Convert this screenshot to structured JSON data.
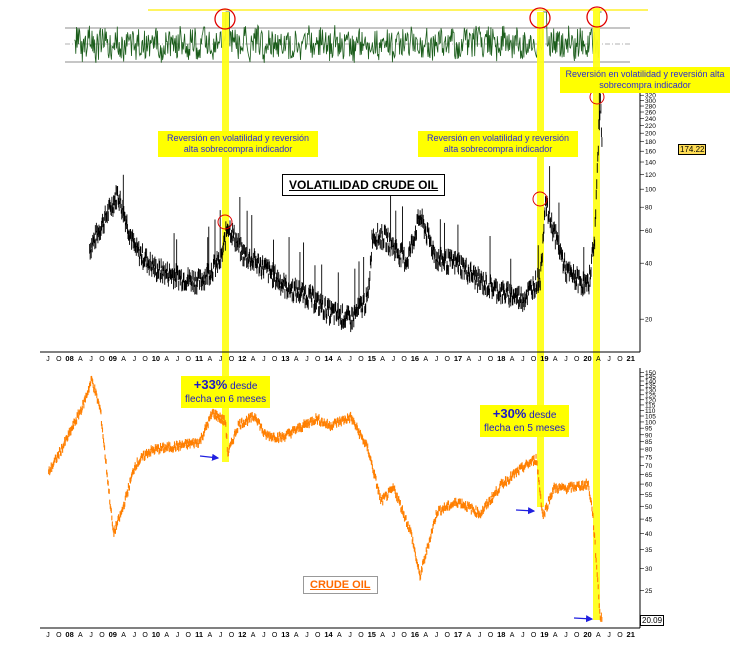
{
  "chart_data": [
    {
      "type": "line",
      "title": "",
      "series": [
        {
          "values": []
        }
      ],
      "x_labels": [
        "J",
        "O",
        "08",
        "A",
        "J",
        "O",
        "09",
        "A",
        "J",
        "O",
        "10",
        "A",
        "J",
        "O",
        "11",
        "A",
        "J",
        "O",
        "12",
        "A",
        "J",
        "O",
        "13",
        "A",
        "J",
        "O",
        "14",
        "A",
        "J",
        "O",
        "15",
        "A",
        "J",
        "O",
        "16",
        "A",
        "J",
        "O",
        "17",
        "A",
        "J",
        "O",
        "18",
        "A",
        "J",
        "O",
        "19",
        "A",
        "J",
        "O",
        "20",
        "A",
        "J",
        "O",
        "21"
      ]
    },
    {
      "type": "line",
      "title": "VOLATILIDAD CRUDE OIL",
      "log_scale": true,
      "y_ticks": [
        20,
        40,
        60,
        80,
        100,
        120,
        140,
        160,
        180,
        200,
        220,
        240,
        260,
        280,
        300,
        320,
        340
      ],
      "last_value": "174.22",
      "x_labels": [
        "J",
        "O",
        "08",
        "A",
        "J",
        "O",
        "09",
        "A",
        "J",
        "O",
        "10",
        "A",
        "J",
        "O",
        "11",
        "A",
        "J",
        "O",
        "12",
        "A",
        "J",
        "O",
        "13",
        "A",
        "J",
        "O",
        "14",
        "A",
        "J",
        "O",
        "15",
        "A",
        "J",
        "O",
        "16",
        "A",
        "J",
        "O",
        "17",
        "A",
        "J",
        "O",
        "18",
        "A",
        "J",
        "O",
        "19",
        "A",
        "J",
        "O",
        "20",
        "A",
        "J",
        "O",
        "21"
      ],
      "x": [
        2008.45,
        2009.1,
        2009.5,
        2010.0,
        2010.5,
        2011.0,
        2011.5,
        2011.65,
        2012.0,
        2012.5,
        2013.0,
        2013.5,
        2014.0,
        2014.5,
        2014.9,
        2015.0,
        2015.3,
        2015.8,
        2016.1,
        2016.5,
        2017.0,
        2017.5,
        2018.0,
        2018.5,
        2018.9,
        2019.0,
        2019.5,
        2020.0,
        2020.15,
        2020.28,
        2020.32
      ],
      "y": [
        48,
        95,
        48,
        37,
        34,
        32,
        42,
        65,
        45,
        38,
        30,
        27,
        22,
        20,
        26,
        57,
        55,
        41,
        72,
        42,
        40,
        32,
        28,
        26,
        34,
        85,
        36,
        30,
        55,
        320,
        174
      ],
      "annotations": [
        "Reversión en volatilidad y reversión alta sobrecompra indicador",
        "Reversión en volatilidad y reversión alta sobrecompra indicador",
        "Reversión en volatilidad y reversión alta sobrecompra indicador"
      ]
    },
    {
      "type": "line",
      "title": "CRUDE OIL",
      "log_scale": true,
      "y_ticks": [
        25,
        30,
        35,
        40,
        45,
        50,
        55,
        60,
        65,
        70,
        75,
        80,
        85,
        90,
        95,
        100,
        105,
        110,
        115,
        120,
        125,
        130,
        135,
        140,
        145,
        150
      ],
      "last_value": "20.09",
      "color": "#ff7f00",
      "x_labels": [
        "J",
        "O",
        "08",
        "A",
        "J",
        "O",
        "09",
        "A",
        "J",
        "O",
        "10",
        "A",
        "J",
        "O",
        "11",
        "A",
        "J",
        "O",
        "12",
        "A",
        "J",
        "O",
        "13",
        "A",
        "J",
        "O",
        "14",
        "A",
        "J",
        "O",
        "15",
        "A",
        "J",
        "O",
        "16",
        "A",
        "J",
        "O",
        "17",
        "A",
        "J",
        "O",
        "18",
        "A",
        "J",
        "O",
        "19",
        "A",
        "J",
        "O",
        "20",
        "A",
        "J",
        "O",
        "21"
      ],
      "x": [
        2007.5,
        2007.8,
        2008.0,
        2008.3,
        2008.5,
        2008.7,
        2009.0,
        2009.2,
        2009.5,
        2009.8,
        2010.0,
        2010.5,
        2011.0,
        2011.3,
        2011.6,
        2011.65,
        2011.9,
        2012.3,
        2012.5,
        2012.9,
        2013.3,
        2013.7,
        2014.0,
        2014.5,
        2014.9,
        2015.2,
        2015.5,
        2015.9,
        2016.1,
        2016.5,
        2017.0,
        2017.5,
        2018.0,
        2018.5,
        2018.8,
        2018.95,
        2019.2,
        2019.5,
        2020.0,
        2020.1,
        2020.2,
        2020.28,
        2020.32
      ],
      "y": [
        66,
        80,
        92,
        115,
        142,
        110,
        40,
        48,
        70,
        78,
        80,
        82,
        85,
        108,
        100,
        77,
        98,
        105,
        90,
        88,
        95,
        103,
        97,
        104,
        80,
        52,
        58,
        40,
        28,
        48,
        52,
        47,
        60,
        69,
        74,
        46,
        58,
        58,
        60,
        48,
        30,
        20,
        20.09
      ],
      "annotations": [
        {
          "bold": "+33%",
          "line1": "desde",
          "line2": "flecha en 6 meses"
        },
        {
          "bold": "+30%",
          "line1": "desde",
          "line2": "flecha en 5 meses"
        }
      ]
    }
  ]
}
